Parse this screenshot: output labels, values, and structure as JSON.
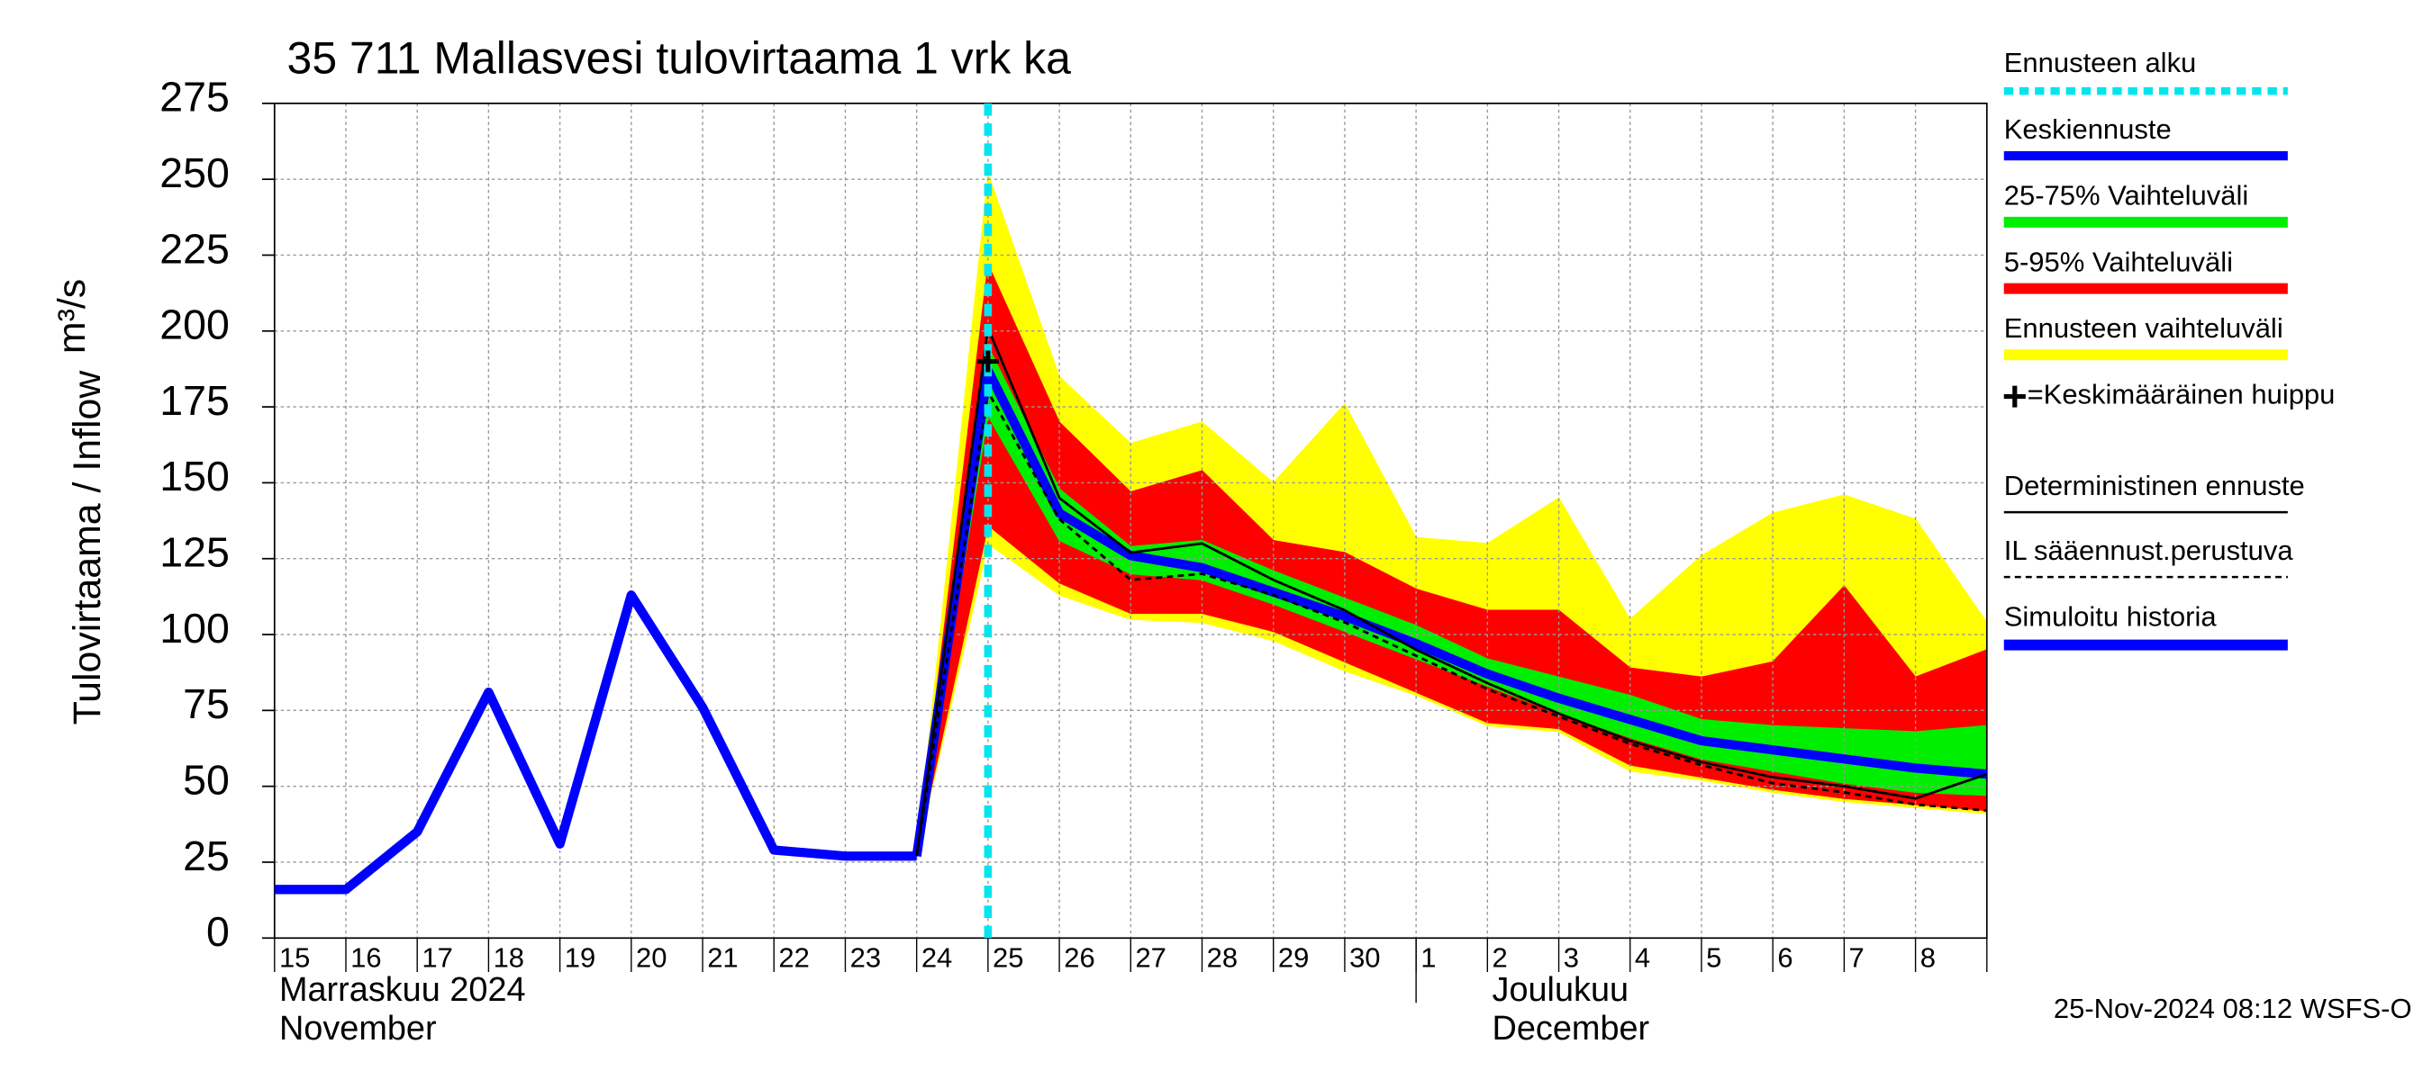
{
  "chart_data": {
    "type": "line",
    "title": "35 711 Mallasvesi tulovirtaama 1 vrk ka",
    "ylabel": "Tulovirtaama / Inflow",
    "yunit": "m³/s",
    "footer": "25-Nov-2024 08:12 WSFS-O",
    "categories": [
      "15",
      "16",
      "17",
      "18",
      "19",
      "20",
      "21",
      "22",
      "23",
      "24",
      "25",
      "26",
      "27",
      "28",
      "29",
      "30",
      "1",
      "2",
      "3",
      "4",
      "5",
      "6",
      "7",
      "8",
      null
    ],
    "months": [
      {
        "label": "Marraskuu 2024",
        "label_en": "November",
        "x": 0
      },
      {
        "label": "Joulukuu",
        "label_en": "December",
        "x": 16
      }
    ],
    "ylim": [
      0,
      275
    ],
    "yticks": [
      0,
      25,
      50,
      75,
      100,
      125,
      150,
      175,
      200,
      225,
      250,
      275
    ],
    "grid": true,
    "forecast_start": {
      "name": "Ennusteen alku",
      "x": 10,
      "color": "#00e5ee"
    },
    "peak": {
      "name": "=Keskimääräinen huippu",
      "x": 10,
      "value": 190,
      "color": "#000000"
    },
    "bands": [
      {
        "name": "Ennusteen vaihteluväli",
        "color": "#ffff00",
        "upper": [
          null,
          null,
          null,
          null,
          null,
          null,
          null,
          null,
          null,
          27,
          252,
          185,
          163,
          170,
          150,
          176,
          132,
          130,
          145,
          105,
          126,
          140,
          146,
          138,
          104
        ],
        "lower": [
          null,
          null,
          null,
          null,
          null,
          null,
          null,
          null,
          null,
          27,
          130,
          113,
          105,
          104,
          98,
          88,
          80,
          70,
          68,
          55,
          52,
          48,
          45,
          43,
          41
        ]
      },
      {
        "name": "5-95% Vaihteluväli",
        "color": "#ff0000",
        "upper": [
          null,
          null,
          null,
          null,
          null,
          null,
          null,
          null,
          null,
          27,
          222,
          170,
          147,
          154,
          131,
          127,
          115,
          108,
          108,
          89,
          86,
          91,
          116,
          86,
          95
        ],
        "lower": [
          null,
          null,
          null,
          null,
          null,
          null,
          null,
          null,
          null,
          27,
          136,
          117,
          107,
          107,
          101,
          91,
          81,
          71,
          69,
          57,
          53,
          49,
          46,
          44,
          42
        ]
      },
      {
        "name": "25-75% Vaihteluväli",
        "color": "#00ee00",
        "upper": [
          null,
          null,
          null,
          null,
          null,
          null,
          null,
          null,
          null,
          27,
          195,
          148,
          129,
          131,
          121,
          112,
          103,
          92,
          86,
          80,
          72,
          70,
          69,
          68,
          70
        ],
        "lower": [
          null,
          null,
          null,
          null,
          null,
          null,
          null,
          null,
          null,
          27,
          172,
          131,
          120,
          118,
          110,
          101,
          92,
          83,
          74,
          66,
          59,
          55,
          51,
          48,
          47
        ]
      }
    ],
    "series": [
      {
        "name": "Keskiennuste",
        "color": "#0000ff",
        "style": "thick",
        "values": [
          null,
          null,
          null,
          null,
          null,
          null,
          null,
          null,
          null,
          27,
          187,
          140,
          126,
          122,
          114,
          106,
          97,
          87,
          79,
          72,
          65,
          62,
          59,
          56,
          54
        ]
      },
      {
        "name": "Deterministinen ennuste",
        "color": "#000000",
        "style": "thin",
        "values": [
          null,
          null,
          null,
          null,
          null,
          null,
          null,
          null,
          null,
          27,
          201,
          145,
          127,
          130,
          118,
          108,
          95,
          84,
          74,
          65,
          58,
          53,
          50,
          46,
          54
        ]
      },
      {
        "name": "IL sääennust.perustuva",
        "color": "#000000",
        "style": "dashed",
        "values": [
          null,
          null,
          null,
          null,
          null,
          null,
          null,
          null,
          null,
          27,
          180,
          138,
          118,
          120,
          113,
          104,
          93,
          82,
          73,
          64,
          57,
          51,
          48,
          44,
          42
        ]
      },
      {
        "name": "Simuloitu historia",
        "color": "#0000ff",
        "style": "thick",
        "values": [
          16,
          16,
          35,
          81,
          31,
          113,
          76,
          29,
          27,
          27,
          null,
          null,
          null,
          null,
          null,
          null,
          null,
          null,
          null,
          null,
          null,
          null,
          null,
          null,
          null
        ]
      }
    ]
  }
}
